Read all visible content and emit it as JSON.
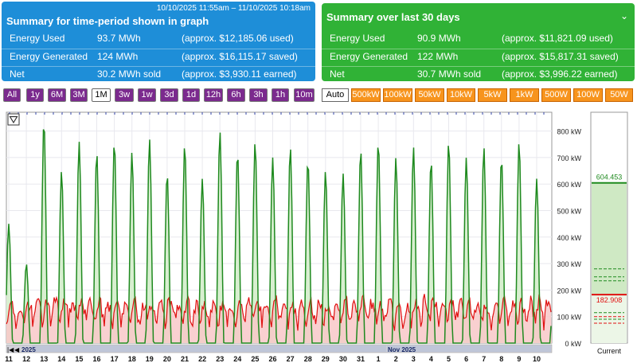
{
  "period_panel": {
    "range": "10/10/2025 11:55am – 11/10/2025 10:18am",
    "title": "Summary for time-period shown in graph",
    "rows": [
      {
        "label": "Energy Used",
        "value": "93.7 MWh",
        "note": "(approx. $12,185.06 used)"
      },
      {
        "label": "Energy Generated",
        "value": "124 MWh",
        "note": "(approx. $16,115.17 saved)"
      },
      {
        "label": "Net",
        "value": "30.2 MWh sold",
        "note": "(approx. $3,930.11 earned)"
      }
    ]
  },
  "month_panel": {
    "title": "Summary over last 30 days",
    "chevron_icon": "chevron-down-icon",
    "rows": [
      {
        "label": "Energy Used",
        "value": "90.9 MWh",
        "note": "(approx. $11,821.09 used)"
      },
      {
        "label": "Energy Generated",
        "value": "122 MWh",
        "note": "(approx. $15,817.31 saved)"
      },
      {
        "label": "Net",
        "value": "30.7 MWh sold",
        "note": "(approx. $3,996.22 earned)"
      }
    ]
  },
  "time_buttons": [
    {
      "label": "All",
      "active": false
    },
    {
      "label": "1y",
      "active": false
    },
    {
      "label": "6M",
      "active": false
    },
    {
      "label": "3M",
      "active": false
    },
    {
      "label": "1M",
      "active": true
    },
    {
      "label": "3w",
      "active": false
    },
    {
      "label": "1w",
      "active": false
    },
    {
      "label": "3d",
      "active": false
    },
    {
      "label": "1d",
      "active": false
    },
    {
      "label": "12h",
      "active": false
    },
    {
      "label": "6h",
      "active": false
    },
    {
      "label": "3h",
      "active": false
    },
    {
      "label": "1h",
      "active": false
    },
    {
      "label": "10m",
      "active": false
    }
  ],
  "scale_buttons": [
    {
      "label": "Auto",
      "active": true
    },
    {
      "label": "500kW",
      "active": false
    },
    {
      "label": "100kW",
      "active": false
    },
    {
      "label": "50kW",
      "active": false
    },
    {
      "label": "10kW",
      "active": false
    },
    {
      "label": "5kW",
      "active": false
    },
    {
      "label": "1kW",
      "active": false
    },
    {
      "label": "500W",
      "active": false
    },
    {
      "label": "100W",
      "active": false
    },
    {
      "label": "50W",
      "active": false
    }
  ],
  "colors": {
    "period_bg": "#1e8ed8",
    "month_bg": "#30b236",
    "time_btn": "#7b2a8e",
    "scale_btn": "#f7941d",
    "generation": "#1f8a1f",
    "generation_fill": "#d8efd0",
    "usage": "#e01010",
    "usage_fill": "#f8c8c8"
  },
  "chart_data": {
    "type": "area",
    "y_unit": "kW",
    "ylim": [
      0,
      900
    ],
    "y_ticks": [
      0,
      100,
      200,
      300,
      400,
      500,
      600,
      700,
      800
    ],
    "y_tick_labels": [
      "0 kW",
      "100 kW",
      "200 kW",
      "300 kW",
      "400 kW",
      "500 kW",
      "600 kW",
      "700 kW",
      "800 kW"
    ],
    "x_day_labels": [
      "11",
      "12",
      "13",
      "14",
      "15",
      "16",
      "17",
      "18",
      "19",
      "20",
      "21",
      "22",
      "23",
      "24",
      "25",
      "26",
      "27",
      "28",
      "29",
      "30",
      "31",
      "1",
      "2",
      "3",
      "4",
      "5",
      "6",
      "7",
      "8",
      "9",
      "10"
    ],
    "month_labels": [
      "2025",
      "Nov 2025"
    ],
    "nav_icons": [
      "skip-back-icon",
      "step-back-icon"
    ],
    "series": [
      {
        "name": "Generation",
        "values": [
          450,
          300,
          840,
          650,
          760,
          720,
          760,
          720,
          770,
          640,
          750,
          620,
          800,
          720,
          760,
          700,
          740,
          690,
          650,
          640,
          730,
          760,
          700,
          740,
          690,
          760,
          700,
          740,
          700,
          760,
          620
        ]
      },
      {
        "name": "Usage",
        "values": [
          160,
          140,
          150,
          160,
          155,
          150,
          140,
          150,
          150,
          160,
          150,
          145,
          160,
          150,
          155,
          160,
          140,
          150,
          150,
          155,
          160,
          150,
          145,
          150,
          160,
          155,
          150,
          145,
          150,
          155,
          160
        ]
      }
    ],
    "current": {
      "label": "Current",
      "generation": "604.453",
      "usage": "182.908",
      "generation_value": 604.453,
      "usage_value": 182.908
    },
    "collapse_icon": "collapse-triangle-icon"
  }
}
